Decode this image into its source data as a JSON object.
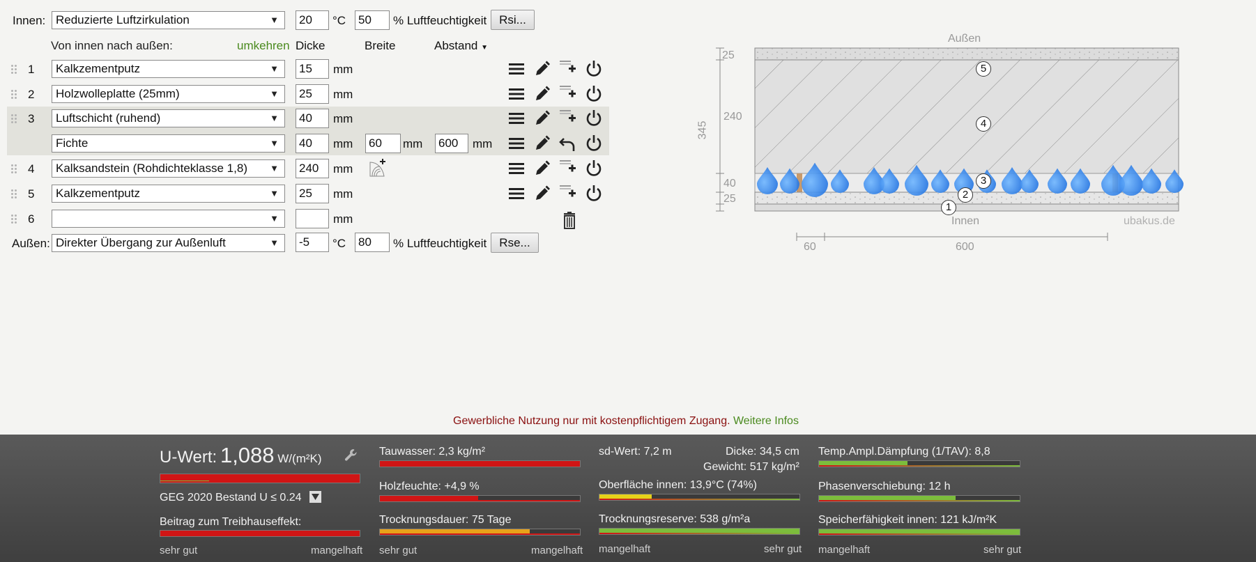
{
  "form": {
    "inside_label": "Innen:",
    "inside_select": "Reduzierte Luftzirkulation",
    "inside_temp": "20",
    "inside_temp_unit": "°C",
    "inside_humidity": "50",
    "inside_humidity_unit": "% Luftfeuchtigkeit",
    "inside_button": "Rsi...",
    "order_label": "Von innen nach außen:",
    "reverse_link": "umkehren",
    "col_thickness": "Dicke",
    "col_width": "Breite",
    "col_spacing": "Abstand",
    "col_spacing_arrow": "▼",
    "unit_mm": "mm",
    "layers": [
      {
        "num": "1",
        "material": "Kalkzementputz",
        "thickness": "15"
      },
      {
        "num": "2",
        "material": "Holzwolleplatte (25mm)",
        "thickness": "25"
      },
      {
        "num": "3",
        "material": "Luftschicht (ruhend)",
        "thickness": "40"
      },
      {
        "num": "",
        "material": "Fichte",
        "thickness": "40",
        "width": "60",
        "spacing": "600"
      },
      {
        "num": "4",
        "material": "Kalksandstein (Rohdichteklasse 1,8)",
        "thickness": "240"
      },
      {
        "num": "5",
        "material": "Kalkzementputz",
        "thickness": "25"
      },
      {
        "num": "6",
        "material": "",
        "thickness": ""
      }
    ],
    "outside_label": "Außen:",
    "outside_select": "Direkter Übergang zur Außenluft",
    "outside_temp": "-5",
    "outside_temp_unit": "°C",
    "outside_humidity": "80",
    "outside_humidity_unit": "% Luftfeuchtigkeit",
    "outside_button": "Rse..."
  },
  "diagram": {
    "top_label": "Außen",
    "bottom_label": "Innen",
    "watermark": "ubakus.de",
    "dim_total": "345",
    "dim_25_top": "25",
    "dim_240": "240",
    "dim_40": "40",
    "dim_25_bottom": "25",
    "dim_60": "60",
    "dim_600": "600",
    "layer_markers": [
      "1",
      "2",
      "3",
      "4",
      "5"
    ]
  },
  "notice": {
    "text": "Gewerbliche Nutzung nur mit kostenpflichtigem Zugang.",
    "link": "Weitere Infos"
  },
  "results": {
    "uvalue_label": "U-Wert:",
    "uvalue_value": "1,088",
    "uvalue_unit": "W/(m²K)",
    "geg_label": "GEG 2020 Bestand U ≤ 0.24",
    "greenhouse_label": "Beitrag zum Treibhauseffekt:",
    "tauwasser": "Tauwasser: 2,3 kg/m²",
    "holzfeuchte": "Holzfeuchte: +4,9 %",
    "trocknungsdauer": "Trocknungsdauer: 75 Tage",
    "sdwert": "sd-Wert: 7,2 m",
    "dicke": "Dicke: 34,5 cm",
    "gewicht": "Gewicht: 517 kg/m²",
    "oberflaeche": "Oberfläche innen: 13,9°C (74%)",
    "trocknungsreserve": "Trocknungsreserve: 538 g/m²a",
    "tav": "Temp.Ampl.Dämpfung (1/TAV): 8,8",
    "phase": "Phasenverschiebung: 12 h",
    "speicher": "Speicherfähigkeit innen: 121 kJ/m²K",
    "scale_good": "sehr gut",
    "scale_bad": "mangelhaft",
    "fill_uvalue": 1.0,
    "fill_greenhouse": 1.0,
    "fill_tauwasser": 1.0,
    "fill_holzfeuchte": 0.49,
    "fill_trocknungsdauer": 0.75,
    "fill_oberflaeche": 0.26,
    "fill_trocknungsreserve": 1.0,
    "fill_tav": 0.44,
    "fill_phase": 0.68,
    "fill_speicher": 1.0,
    "colors": {
      "bad": "#d01515",
      "warn": "#e8a21a",
      "good": "#7cbd3c",
      "yellow": "#e6d21a"
    }
  }
}
